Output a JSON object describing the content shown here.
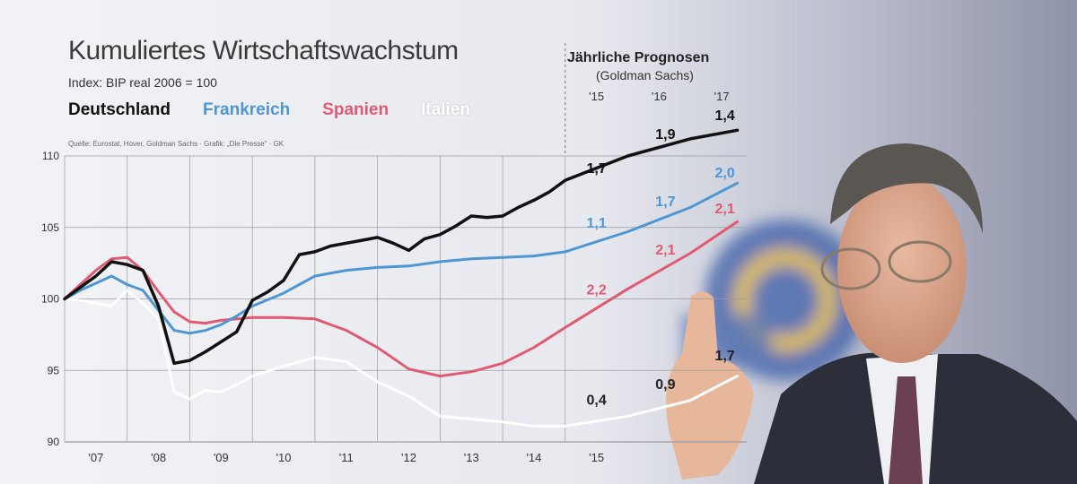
{
  "title": "Kumuliertes Wirtschaftswachstum",
  "subtitle": "Index: BIP real 2006 = 100",
  "source": "Quelle: Eurostat, Hover, Goldman Sachs · Grafik: „Die Presse“ · GK",
  "forecast": {
    "title": "Jährliche Prognosen",
    "subtitle": "(Goldman Sachs)"
  },
  "legend": [
    {
      "label": "Deutschland",
      "color": "#111111"
    },
    {
      "label": "Frankreich",
      "color": "#4f96d4"
    },
    {
      "label": "Spanien",
      "color": "#e05a72"
    },
    {
      "label": "Italien",
      "color": "#ffffff"
    }
  ],
  "chart_data": {
    "type": "line",
    "title": "Kumuliertes Wirtschaftswachstum",
    "subtitle": "Index: BIP real 2006 = 100",
    "xlim": [
      2007,
      2017.9
    ],
    "ylim": [
      90,
      110
    ],
    "yticks": [
      90,
      95,
      100,
      105,
      110
    ],
    "xticks": [
      {
        "x": 2007.5,
        "label": "'07"
      },
      {
        "x": 2008.5,
        "label": "'08"
      },
      {
        "x": 2009.5,
        "label": "'09"
      },
      {
        "x": 2010.5,
        "label": "'10"
      },
      {
        "x": 2011.5,
        "label": "'11"
      },
      {
        "x": 2012.5,
        "label": "'12"
      },
      {
        "x": 2013.5,
        "label": "'13"
      },
      {
        "x": 2014.5,
        "label": "'14"
      },
      {
        "x": 2015.5,
        "label": "'15"
      }
    ],
    "forecast_ticks": [
      {
        "x": 2015.5,
        "label": "'15"
      },
      {
        "x": 2016.5,
        "label": "'16"
      },
      {
        "x": 2017.5,
        "label": "'17"
      }
    ],
    "forecast_start": 2015,
    "grid": true,
    "series": [
      {
        "name": "Deutschland",
        "color": "#111111",
        "x": [
          2007,
          2007.25,
          2007.5,
          2007.75,
          2008,
          2008.25,
          2008.5,
          2008.75,
          2009,
          2009.25,
          2009.5,
          2009.75,
          2010,
          2010.25,
          2010.5,
          2010.75,
          2011,
          2011.25,
          2011.5,
          2011.75,
          2012,
          2012.25,
          2012.5,
          2012.75,
          2013,
          2013.25,
          2013.5,
          2013.75,
          2014,
          2014.25,
          2014.5,
          2014.75,
          2015,
          2016,
          2017,
          2017.75
        ],
        "y": [
          100,
          100.8,
          101.6,
          102.6,
          102.4,
          102,
          99.5,
          95.5,
          95.7,
          96.3,
          97,
          97.7,
          99.9,
          100.5,
          101.3,
          103.1,
          103.3,
          103.7,
          103.9,
          104.1,
          104.3,
          103.9,
          103.4,
          104.2,
          104.5,
          105.1,
          105.8,
          105.7,
          105.8,
          106.4,
          106.9,
          107.5,
          108.3,
          110,
          111.2,
          111.8
        ]
      },
      {
        "name": "Frankreich",
        "color": "#4f96d4",
        "x": [
          2007,
          2007.25,
          2007.5,
          2007.75,
          2008,
          2008.25,
          2008.5,
          2008.75,
          2009,
          2009.25,
          2009.5,
          2009.75,
          2010,
          2010.5,
          2011,
          2011.5,
          2012,
          2012.5,
          2013,
          2013.5,
          2014,
          2014.5,
          2015,
          2016,
          2017,
          2017.75
        ],
        "y": [
          100,
          100.6,
          101.1,
          101.6,
          101,
          100.6,
          99.2,
          97.8,
          97.6,
          97.8,
          98.2,
          98.8,
          99.5,
          100.4,
          101.6,
          102,
          102.2,
          102.3,
          102.6,
          102.8,
          102.9,
          103,
          103.3,
          104.7,
          106.4,
          108.1
        ]
      },
      {
        "name": "Spanien",
        "color": "#e05a72",
        "x": [
          2007,
          2007.25,
          2007.5,
          2007.75,
          2008,
          2008.25,
          2008.5,
          2008.75,
          2009,
          2009.25,
          2009.5,
          2009.75,
          2010,
          2010.5,
          2011,
          2011.5,
          2012,
          2012.5,
          2013,
          2013.5,
          2014,
          2014.5,
          2015,
          2016,
          2017,
          2017.75
        ],
        "y": [
          100,
          101,
          102,
          102.8,
          102.9,
          102,
          100.5,
          99.1,
          98.4,
          98.3,
          98.5,
          98.6,
          98.7,
          98.7,
          98.6,
          97.8,
          96.6,
          95.1,
          94.6,
          94.9,
          95.5,
          96.6,
          98,
          100.7,
          103.2,
          105.4
        ]
      },
      {
        "name": "Italien",
        "color": "#ffffff",
        "x": [
          2007,
          2007.25,
          2007.5,
          2007.75,
          2008,
          2008.25,
          2008.5,
          2008.75,
          2009,
          2009.25,
          2009.5,
          2009.75,
          2010,
          2010.5,
          2011,
          2011.5,
          2012,
          2012.5,
          2013,
          2013.5,
          2014,
          2014.5,
          2015,
          2016,
          2017,
          2017.75
        ],
        "y": [
          100,
          99.9,
          99.7,
          99.5,
          100.6,
          99.7,
          98.6,
          93.5,
          93,
          93.6,
          93.5,
          94,
          94.6,
          95.3,
          95.9,
          95.6,
          94.2,
          93.2,
          91.8,
          91.6,
          91.4,
          91.1,
          91.1,
          91.8,
          92.9,
          94.6
        ]
      }
    ],
    "annotations": [
      {
        "series": "Deutschland",
        "text": "1,7",
        "x": 2015.5,
        "y": 108.8
      },
      {
        "series": "Deutschland",
        "text": "1,9",
        "x": 2016.6,
        "y": 111.2
      },
      {
        "series": "Deutschland",
        "text": "1,4",
        "x": 2017.55,
        "y": 112.5
      },
      {
        "series": "Frankreich",
        "text": "1,1",
        "x": 2015.5,
        "y": 105
      },
      {
        "series": "Frankreich",
        "text": "1,7",
        "x": 2016.6,
        "y": 106.5
      },
      {
        "series": "Frankreich",
        "text": "2,0",
        "x": 2017.55,
        "y": 108.5
      },
      {
        "series": "Spanien",
        "text": "2,2",
        "x": 2015.5,
        "y": 100.3
      },
      {
        "series": "Spanien",
        "text": "2,1",
        "x": 2016.6,
        "y": 103.1
      },
      {
        "series": "Spanien",
        "text": "2,1",
        "x": 2017.55,
        "y": 106
      },
      {
        "series": "Italien",
        "text": "0,4",
        "x": 2015.5,
        "y": 92.6
      },
      {
        "series": "Italien",
        "text": "0,9",
        "x": 2016.6,
        "y": 93.7
      },
      {
        "series": "Italien",
        "text": "1,7",
        "x": 2017.55,
        "y": 95.7
      }
    ]
  }
}
